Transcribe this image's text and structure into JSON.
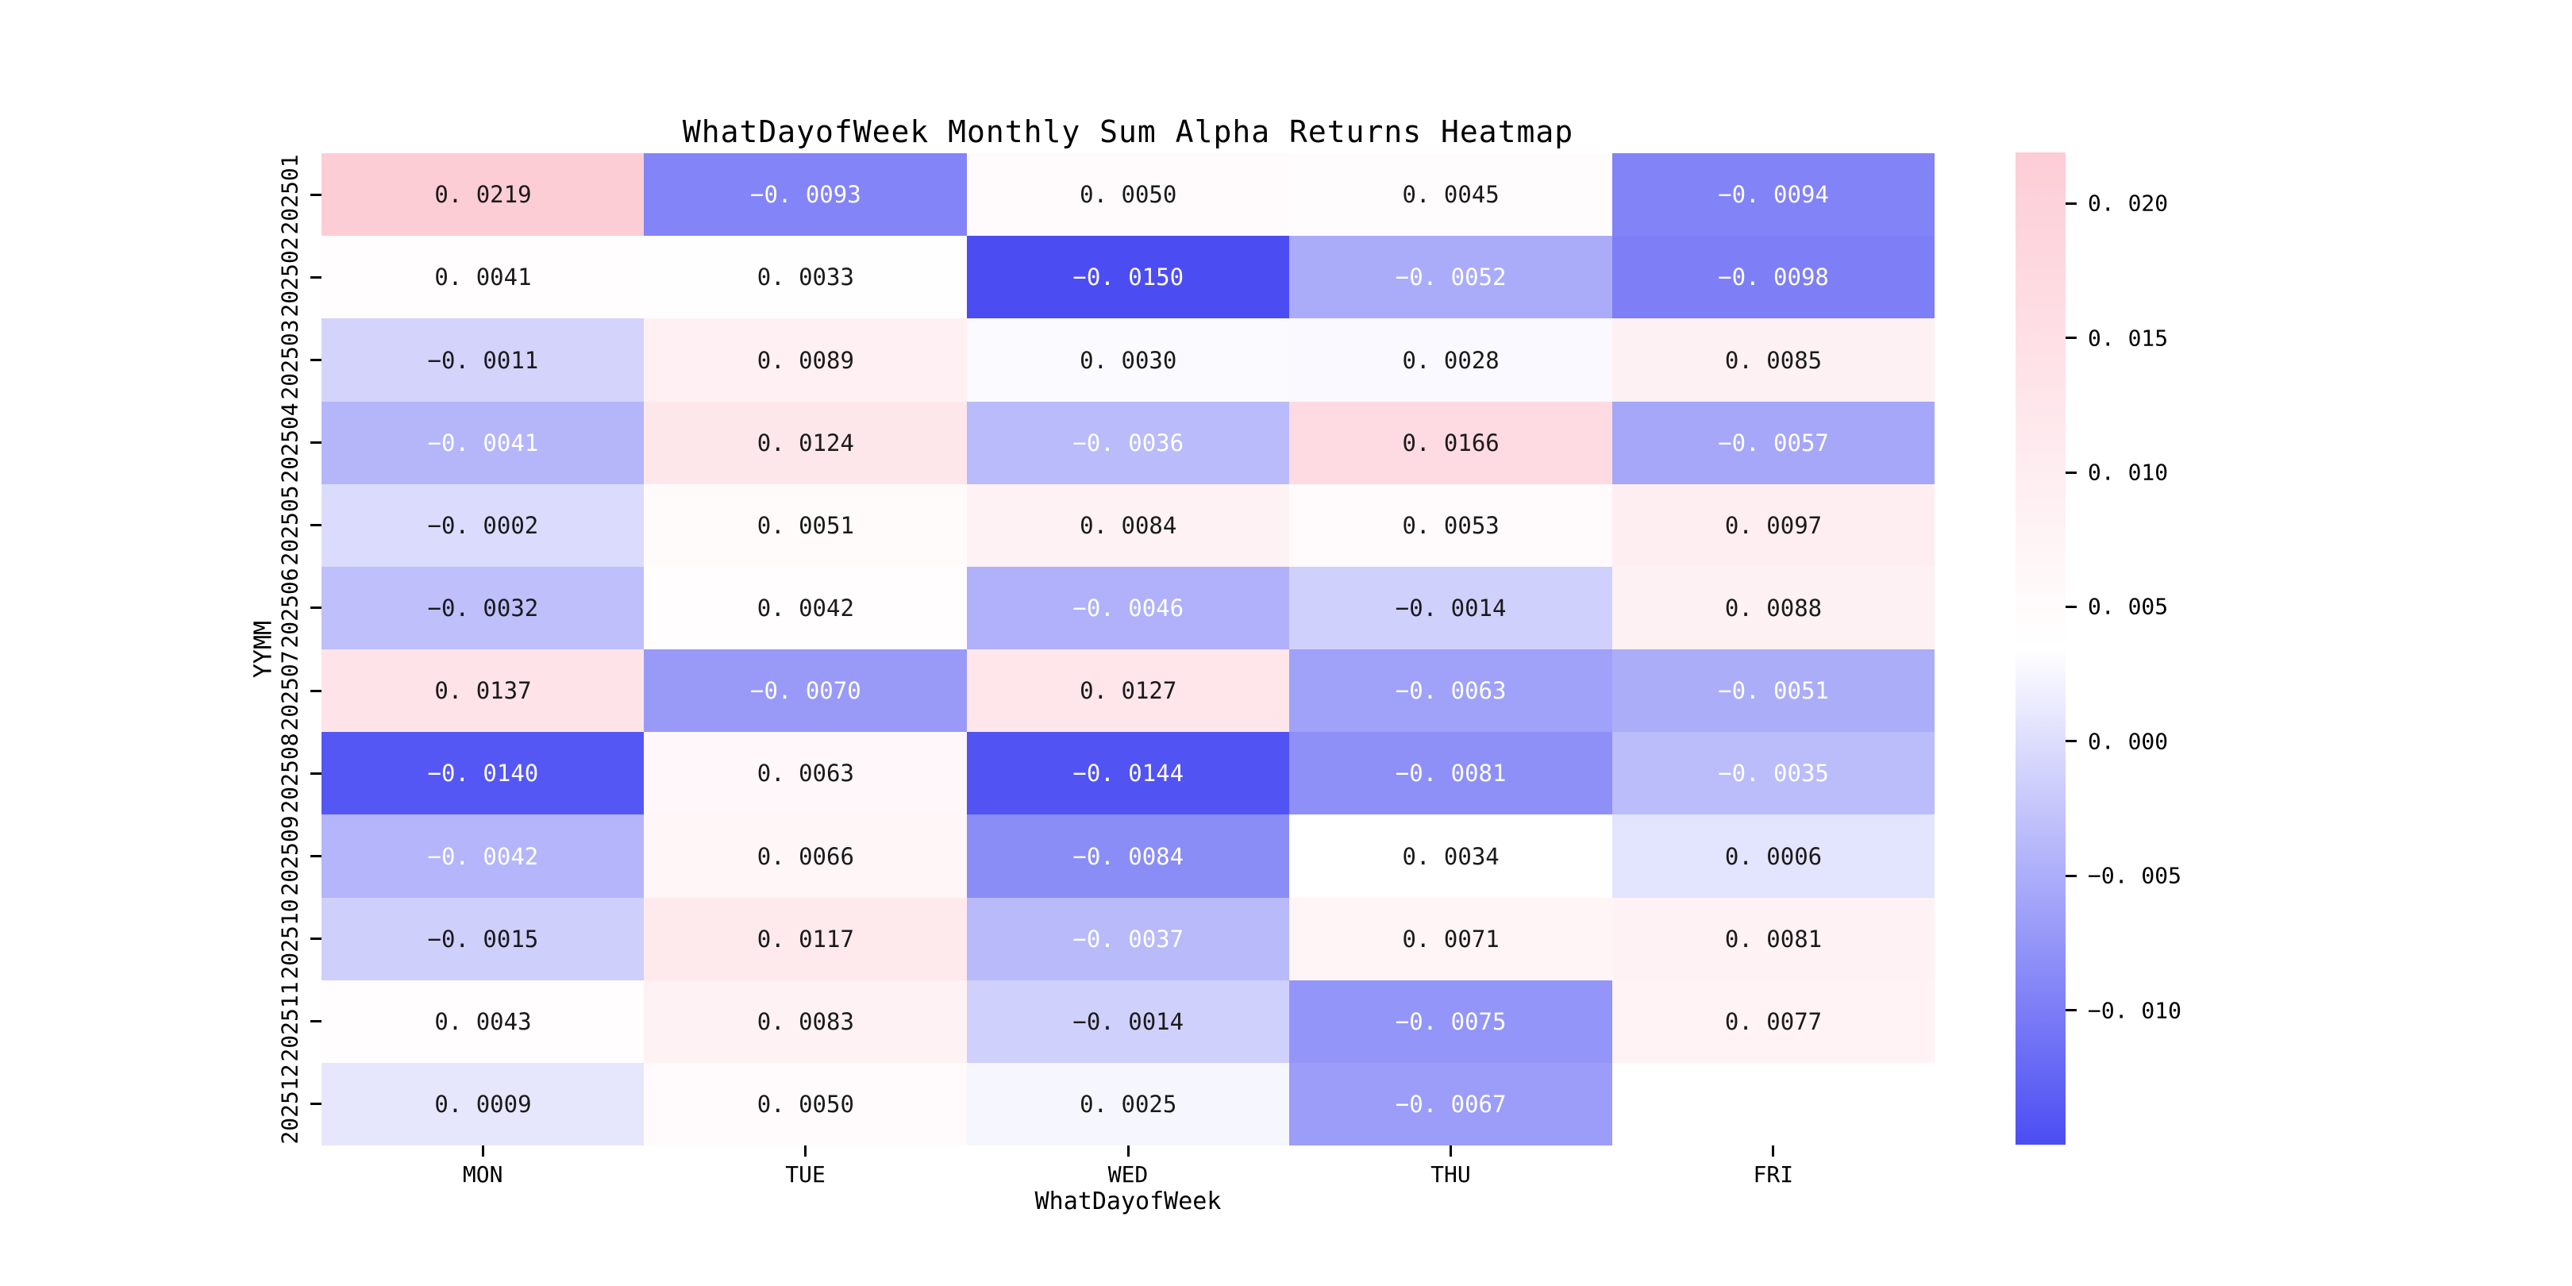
{
  "chart_data": {
    "type": "heatmap",
    "title": "WhatDayofWeek Monthly Sum Alpha Returns Heatmap",
    "xlabel": "WhatDayofWeek",
    "ylabel": "YYMM",
    "columns": [
      "MON",
      "TUE",
      "WED",
      "THU",
      "FRI"
    ],
    "rows": [
      "202501",
      "202502",
      "202503",
      "202504",
      "202505",
      "202506",
      "202507",
      "202508",
      "202509",
      "202510",
      "202511",
      "202512"
    ],
    "values": [
      [
        0.0219,
        -0.0093,
        0.005,
        0.0045,
        -0.0094
      ],
      [
        0.0041,
        0.0033,
        -0.015,
        -0.0052,
        -0.0098
      ],
      [
        -0.0011,
        0.0089,
        0.003,
        0.0028,
        0.0085
      ],
      [
        -0.0041,
        0.0124,
        -0.0036,
        0.0166,
        -0.0057
      ],
      [
        -0.0002,
        0.0051,
        0.0084,
        0.0053,
        0.0097
      ],
      [
        -0.0032,
        0.0042,
        -0.0046,
        -0.0014,
        0.0088
      ],
      [
        0.0137,
        -0.007,
        0.0127,
        -0.0063,
        -0.0051
      ],
      [
        -0.014,
        0.0063,
        -0.0144,
        -0.0081,
        -0.0035
      ],
      [
        -0.0042,
        0.0066,
        -0.0084,
        0.0034,
        0.0006
      ],
      [
        -0.0015,
        0.0117,
        -0.0037,
        0.0071,
        0.0081
      ],
      [
        0.0043,
        0.0083,
        -0.0014,
        -0.0075,
        0.0077
      ],
      [
        0.0009,
        0.005,
        0.0025,
        -0.0067,
        null
      ]
    ],
    "colormap": {
      "vmin": -0.015,
      "vmax": 0.0219,
      "min_color": "#4b4df3",
      "mid_color": "#ffffff",
      "max_color": "#fdcdd6",
      "missing_color": "#ffffff",
      "annot_dark_color": "#1a1a1a",
      "annot_light_color": "#ffffff",
      "white_text_below": -0.0034
    },
    "colorbar_ticks": [
      0.02,
      0.015,
      0.01,
      0.005,
      0.0,
      -0.005,
      -0.01
    ],
    "cell_decimals": 4,
    "colorbar_decimals": 3,
    "grid": false,
    "legend_position": "right-colorbar"
  }
}
